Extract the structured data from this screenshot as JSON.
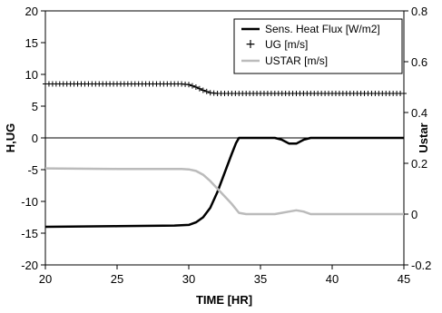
{
  "chart_data": {
    "type": "line",
    "xlabel": "TIME [HR]",
    "ylabel_left": "H,UG",
    "ylabel_right": "Ustar",
    "xlim": [
      20,
      45
    ],
    "ylim_left": [
      -20,
      20
    ],
    "ylim_right": [
      -0.2,
      0.8
    ],
    "x_ticks": [
      20,
      25,
      30,
      35,
      40,
      45
    ],
    "y_ticks_left": [
      20,
      15,
      10,
      5,
      0,
      -5,
      -10,
      -15,
      -20
    ],
    "y_ticks_right": [
      0.8,
      0.6,
      0.4,
      0.2,
      0,
      -0.2
    ],
    "zero_line": true,
    "legend_position": "top-right",
    "series": [
      {
        "name": "Sens. Heat Flux [W/m2]",
        "axis": "left",
        "style": "line",
        "color": "#000000",
        "x": [
          20,
          25,
          29,
          30,
          30.5,
          31,
          31.5,
          32,
          32.5,
          33,
          33.3,
          33.5,
          34,
          35,
          36,
          36.5,
          37,
          37.5,
          38,
          38.5,
          39,
          40,
          45
        ],
        "y": [
          -14,
          -13.9,
          -13.8,
          -13.7,
          -13.3,
          -12.5,
          -11,
          -8.5,
          -5.5,
          -2.5,
          -0.8,
          0,
          0,
          0,
          0,
          -0.3,
          -0.9,
          -0.9,
          -0.3,
          0,
          0,
          0,
          0
        ]
      },
      {
        "name": "UG [m/s]",
        "axis": "left",
        "style": "markers",
        "marker": "+",
        "color": "#000000",
        "x": [
          20,
          25,
          29.5,
          30,
          30.5,
          31,
          31.5,
          32,
          35,
          40,
          45
        ],
        "y": [
          8.5,
          8.5,
          8.5,
          8.4,
          8.0,
          7.5,
          7.1,
          7.0,
          7.0,
          7.0,
          7.0
        ]
      },
      {
        "name": "USTAR [m/s]",
        "axis": "right",
        "style": "line",
        "color": "#bbbbbb",
        "x": [
          20,
          25,
          29.5,
          30,
          30.5,
          31,
          31.5,
          32,
          32.5,
          33,
          33.5,
          34,
          35,
          36,
          37,
          37.5,
          38,
          38.5,
          39,
          40,
          45
        ],
        "y": [
          0.18,
          0.178,
          0.178,
          0.176,
          0.17,
          0.155,
          0.13,
          0.1,
          0.07,
          0.04,
          0.005,
          0,
          0,
          0,
          0.01,
          0.015,
          0.01,
          0,
          0,
          0,
          0
        ]
      }
    ]
  }
}
